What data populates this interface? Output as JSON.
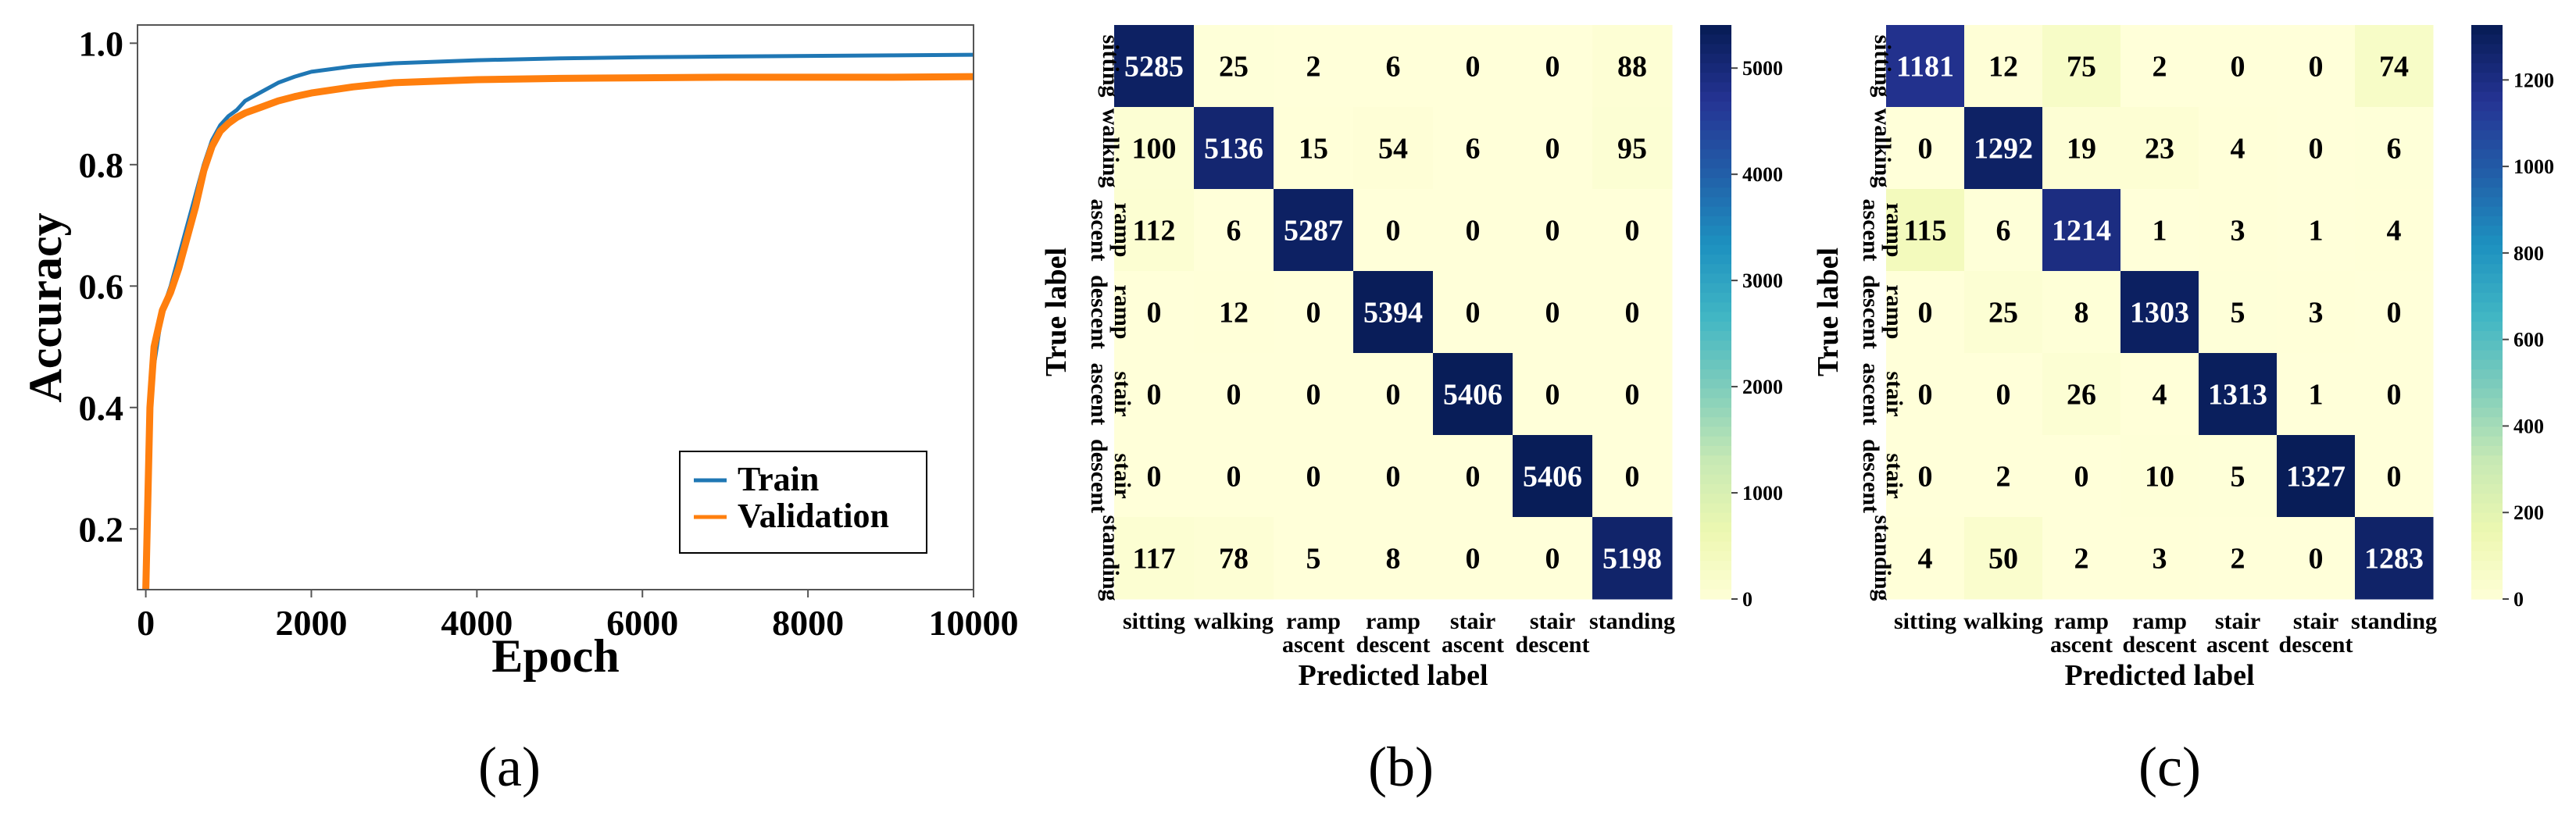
{
  "captions": [
    "(a)",
    "(b)",
    "(c)"
  ],
  "colors": {
    "train": "#1f77b4",
    "validation": "#ff7f0e",
    "cmap": [
      "#ffffd9",
      "#edf8b1",
      "#c7e9b4",
      "#7fcdbb",
      "#41b6c4",
      "#1d91c0",
      "#225ea8",
      "#253494",
      "#081d58"
    ]
  },
  "chart_data": [
    {
      "type": "line",
      "xlabel": "Epoch",
      "ylabel": "Accuracy",
      "xlim": [
        -100,
        10000
      ],
      "ylim": [
        0.1,
        1.03
      ],
      "xticks": [
        0,
        2000,
        4000,
        6000,
        8000,
        10000
      ],
      "xtick_labels": [
        "0",
        "2000",
        "4000",
        "6000",
        "8000",
        "10000"
      ],
      "yticks": [
        0.2,
        0.4,
        0.6,
        0.8,
        1.0
      ],
      "ytick_labels": [
        "0.2",
        "0.4",
        "0.6",
        "0.8",
        "1.0"
      ],
      "legend_position": "lower-right",
      "series": [
        {
          "name": "Train",
          "x": [
            0,
            50,
            100,
            200,
            300,
            400,
            500,
            600,
            700,
            800,
            900,
            1000,
            1100,
            1200,
            1400,
            1600,
            1800,
            2000,
            2500,
            3000,
            4000,
            5000,
            6000,
            7000,
            8000,
            9000,
            10000
          ],
          "y": [
            0.1,
            0.38,
            0.47,
            0.56,
            0.6,
            0.65,
            0.7,
            0.75,
            0.8,
            0.84,
            0.865,
            0.88,
            0.89,
            0.905,
            0.92,
            0.935,
            0.945,
            0.953,
            0.962,
            0.967,
            0.972,
            0.975,
            0.977,
            0.978,
            0.979,
            0.98,
            0.981
          ]
        },
        {
          "name": "Validation",
          "x": [
            0,
            50,
            100,
            200,
            300,
            400,
            500,
            600,
            700,
            800,
            900,
            1000,
            1100,
            1200,
            1400,
            1600,
            1800,
            2000,
            2500,
            3000,
            4000,
            5000,
            6000,
            7000,
            8000,
            9000,
            10000
          ],
          "y": [
            0.1,
            0.4,
            0.5,
            0.56,
            0.59,
            0.63,
            0.68,
            0.73,
            0.79,
            0.83,
            0.855,
            0.868,
            0.878,
            0.885,
            0.895,
            0.905,
            0.912,
            0.918,
            0.928,
            0.935,
            0.94,
            0.942,
            0.943,
            0.944,
            0.944,
            0.944,
            0.945
          ]
        }
      ]
    },
    {
      "type": "heatmap",
      "xlabel": "Predicted label",
      "ylabel": "True label",
      "x_categories": [
        "sitting",
        "walking",
        "ramp ascent",
        "ramp descent",
        "stair ascent",
        "stair descent",
        "standing"
      ],
      "y_categories": [
        "sitting",
        "walking",
        "ramp ascent",
        "ramp descent",
        "stair ascent",
        "stair descent",
        "standing"
      ],
      "values": [
        [
          5285,
          25,
          2,
          6,
          0,
          0,
          88
        ],
        [
          100,
          5136,
          15,
          54,
          6,
          0,
          95
        ],
        [
          112,
          6,
          5287,
          0,
          0,
          0,
          0
        ],
        [
          0,
          12,
          0,
          5394,
          0,
          0,
          0
        ],
        [
          0,
          0,
          0,
          0,
          5406,
          0,
          0
        ],
        [
          0,
          0,
          0,
          0,
          0,
          5406,
          0
        ],
        [
          117,
          78,
          5,
          8,
          0,
          0,
          5198
        ]
      ],
      "vmax": 5406,
      "colorbar_ticks": [
        0,
        1000,
        2000,
        3000,
        4000,
        5000
      ],
      "colorbar_labels": [
        "0",
        "1000",
        "2000",
        "3000",
        "4000",
        "5000"
      ]
    },
    {
      "type": "heatmap",
      "xlabel": "Predicted label",
      "ylabel": "True label",
      "x_categories": [
        "sitting",
        "walking",
        "ramp ascent",
        "ramp descent",
        "stair ascent",
        "stair descent",
        "standing"
      ],
      "y_categories": [
        "sitting",
        "walking",
        "ramp ascent",
        "ramp descent",
        "stair ascent",
        "stair descent",
        "standing"
      ],
      "values": [
        [
          1181,
          12,
          75,
          2,
          0,
          0,
          74
        ],
        [
          0,
          1292,
          19,
          23,
          4,
          0,
          6
        ],
        [
          115,
          6,
          1214,
          1,
          3,
          1,
          4
        ],
        [
          0,
          25,
          8,
          1303,
          5,
          3,
          0
        ],
        [
          0,
          0,
          26,
          4,
          1313,
          1,
          0
        ],
        [
          0,
          2,
          0,
          10,
          5,
          1327,
          0
        ],
        [
          4,
          50,
          2,
          3,
          2,
          0,
          1283
        ]
      ],
      "vmax": 1327,
      "colorbar_ticks": [
        0,
        200,
        400,
        600,
        800,
        1000,
        1200
      ],
      "colorbar_labels": [
        "0",
        "200",
        "400",
        "600",
        "800",
        "1000",
        "1200"
      ]
    }
  ]
}
